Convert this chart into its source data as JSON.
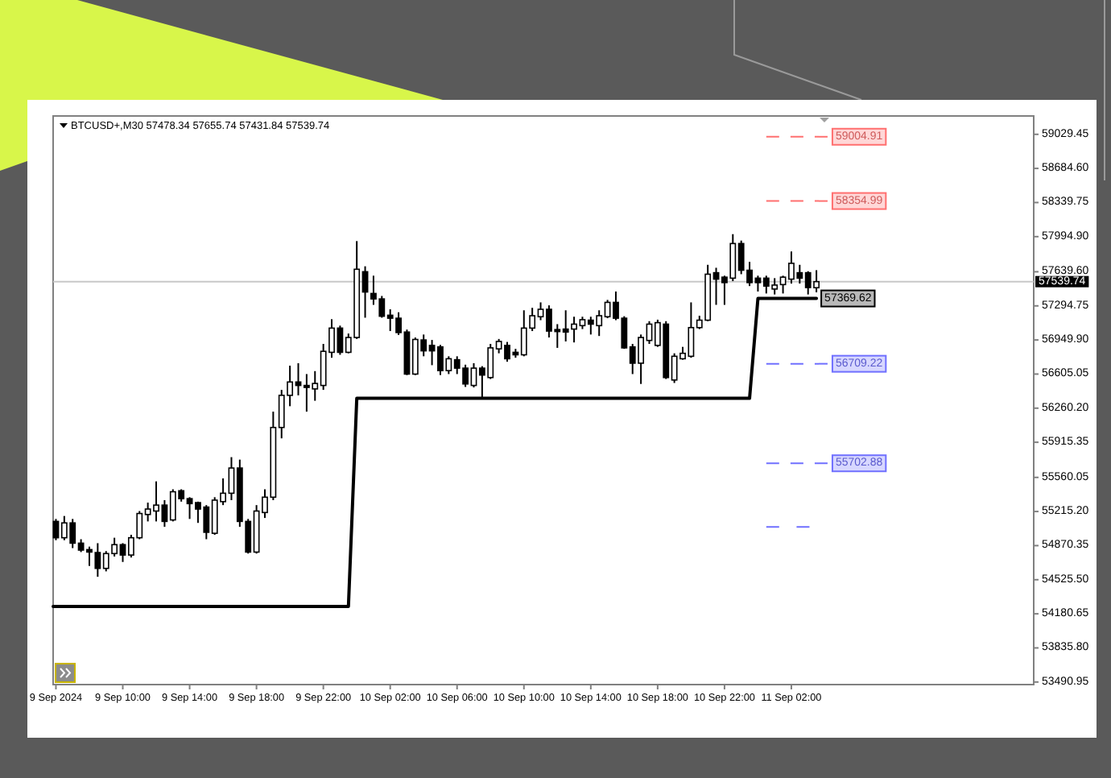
{
  "chart_data": {
    "type": "candlestick",
    "title": "BTCUSD+,M30 57478.34 57655.74 57431.84 57539.74",
    "color": "#000000",
    "x": [
      "2024-09-09T06:00",
      "2024-09-09T06:30",
      "2024-09-09T07:00",
      "2024-09-09T07:30",
      "2024-09-09T08:00",
      "2024-09-09T08:30",
      "2024-09-09T09:00",
      "2024-09-09T09:30",
      "2024-09-09T10:00",
      "2024-09-09T10:30",
      "2024-09-09T11:00",
      "2024-09-09T11:30",
      "2024-09-09T12:00",
      "2024-09-09T12:30",
      "2024-09-09T13:00",
      "2024-09-09T13:30",
      "2024-09-09T14:00",
      "2024-09-09T14:30",
      "2024-09-09T15:00",
      "2024-09-09T15:30",
      "2024-09-09T16:00",
      "2024-09-09T16:30",
      "2024-09-09T17:00",
      "2024-09-09T17:30",
      "2024-09-09T18:00",
      "2024-09-09T18:30",
      "2024-09-09T19:00",
      "2024-09-09T19:30",
      "2024-09-09T20:00",
      "2024-09-09T20:30",
      "2024-09-09T21:00",
      "2024-09-09T21:30",
      "2024-09-09T22:00",
      "2024-09-09T22:30",
      "2024-09-09T23:00",
      "2024-09-09T23:30",
      "2024-09-10T00:00",
      "2024-09-10T00:30",
      "2024-09-10T01:00",
      "2024-09-10T01:30",
      "2024-09-10T02:00",
      "2024-09-10T02:30",
      "2024-09-10T03:00",
      "2024-09-10T03:30",
      "2024-09-10T04:00",
      "2024-09-10T04:30",
      "2024-09-10T05:00",
      "2024-09-10T05:30",
      "2024-09-10T06:00",
      "2024-09-10T06:30",
      "2024-09-10T07:00",
      "2024-09-10T07:30",
      "2024-09-10T08:00",
      "2024-09-10T08:30",
      "2024-09-10T09:00",
      "2024-09-10T09:30",
      "2024-09-10T10:00",
      "2024-09-10T10:30",
      "2024-09-10T11:00",
      "2024-09-10T11:30",
      "2024-09-10T12:00",
      "2024-09-10T12:30",
      "2024-09-10T13:00",
      "2024-09-10T13:30",
      "2024-09-10T14:00",
      "2024-09-10T14:30",
      "2024-09-10T15:00",
      "2024-09-10T15:30",
      "2024-09-10T16:00",
      "2024-09-10T16:30",
      "2024-09-10T17:00",
      "2024-09-10T17:30",
      "2024-09-10T18:00",
      "2024-09-10T18:30",
      "2024-09-10T19:00",
      "2024-09-10T19:30",
      "2024-09-10T20:00",
      "2024-09-10T20:30",
      "2024-09-10T21:00",
      "2024-09-10T21:30",
      "2024-09-10T22:00",
      "2024-09-10T22:30",
      "2024-09-10T23:00",
      "2024-09-10T23:30",
      "2024-09-11T00:00",
      "2024-09-11T00:30",
      "2024-09-11T01:00",
      "2024-09-11T01:30",
      "2024-09-11T02:00",
      "2024-09-11T02:30",
      "2024-09-11T03:00",
      "2024-09-11T03:30"
    ],
    "ohlc": [
      [
        55115,
        55140,
        54925,
        54950
      ],
      [
        54950,
        55170,
        54925,
        55100
      ],
      [
        55100,
        55140,
        54845,
        54895
      ],
      [
        54895,
        54935,
        54805,
        54825
      ],
      [
        54830,
        54860,
        54665,
        54805
      ],
      [
        54800,
        54895,
        54555,
        54640
      ],
      [
        54640,
        54815,
        54610,
        54790
      ],
      [
        54790,
        54950,
        54760,
        54880
      ],
      [
        54880,
        54895,
        54705,
        54775
      ],
      [
        54775,
        54980,
        54750,
        54950
      ],
      [
        54950,
        55220,
        54935,
        55195
      ],
      [
        55185,
        55305,
        55115,
        55240
      ],
      [
        55220,
        55520,
        55115,
        55280
      ],
      [
        55280,
        55330,
        55060,
        55115
      ],
      [
        55130,
        55440,
        55115,
        55415
      ],
      [
        55425,
        55440,
        55315,
        55345
      ],
      [
        55345,
        55360,
        55140,
        55295
      ],
      [
        55305,
        55315,
        55100,
        55240
      ],
      [
        55260,
        55280,
        54935,
        55005
      ],
      [
        54995,
        55360,
        54980,
        55330
      ],
      [
        55315,
        55550,
        55280,
        55400
      ],
      [
        55400,
        55765,
        55330,
        55655
      ],
      [
        55655,
        55740,
        55060,
        55115
      ],
      [
        55115,
        55140,
        54790,
        54805
      ],
      [
        54805,
        55280,
        54790,
        55220
      ],
      [
        55205,
        55440,
        55150,
        55360
      ],
      [
        55360,
        56225,
        55330,
        56065
      ],
      [
        56065,
        56445,
        55955,
        56390
      ],
      [
        56390,
        56690,
        56280,
        56525
      ],
      [
        56525,
        56715,
        56390,
        56490
      ],
      [
        56490,
        56605,
        56225,
        56470
      ],
      [
        56455,
        56635,
        56335,
        56510
      ],
      [
        56490,
        56910,
        56445,
        56835
      ],
      [
        56825,
        57160,
        56770,
        57070
      ],
      [
        57070,
        57095,
        56800,
        56825
      ],
      [
        56825,
        57015,
        56815,
        56975
      ],
      [
        56975,
        57950,
        56960,
        57665
      ],
      [
        57640,
        57695,
        57175,
        57435
      ],
      [
        57420,
        57600,
        57305,
        57365
      ],
      [
        57365,
        57395,
        57175,
        57190
      ],
      [
        57200,
        57260,
        57040,
        57170
      ],
      [
        57170,
        57230,
        57000,
        57025
      ],
      [
        57030,
        57055,
        56595,
        56605
      ],
      [
        56605,
        56975,
        56595,
        56955
      ],
      [
        56950,
        57005,
        56785,
        56840
      ],
      [
        56895,
        56950,
        56695,
        56840
      ],
      [
        56880,
        56900,
        56595,
        56640
      ],
      [
        56640,
        56785,
        56605,
        56760
      ],
      [
        56750,
        56785,
        56605,
        56665
      ],
      [
        56665,
        56700,
        56475,
        56505
      ],
      [
        56490,
        56715,
        56470,
        56665
      ],
      [
        56665,
        56685,
        56355,
        56595
      ],
      [
        56570,
        56910,
        56555,
        56870
      ],
      [
        56860,
        56960,
        56815,
        56935
      ],
      [
        56895,
        56930,
        56730,
        56760
      ],
      [
        56825,
        56860,
        56770,
        56800
      ],
      [
        56800,
        57250,
        56785,
        57070
      ],
      [
        57070,
        57275,
        57040,
        57195
      ],
      [
        57185,
        57330,
        57150,
        57260
      ],
      [
        57260,
        57300,
        56975,
        57040
      ],
      [
        57055,
        57110,
        56870,
        57035
      ],
      [
        57060,
        57250,
        56935,
        57030
      ],
      [
        57060,
        57185,
        56925,
        57110
      ],
      [
        57095,
        57185,
        57060,
        57155
      ],
      [
        57150,
        57185,
        57005,
        57110
      ],
      [
        57095,
        57250,
        56990,
        57195
      ],
      [
        57185,
        57355,
        57170,
        57330
      ],
      [
        57330,
        57440,
        57150,
        57170
      ],
      [
        57170,
        57190,
        56860,
        56870
      ],
      [
        56880,
        56910,
        56605,
        56715
      ],
      [
        56715,
        57005,
        56505,
        56975
      ],
      [
        56945,
        57140,
        56910,
        57110
      ],
      [
        56895,
        57155,
        56880,
        57125
      ],
      [
        57110,
        57140,
        56555,
        56570
      ],
      [
        56545,
        56815,
        56515,
        56785
      ],
      [
        56760,
        56880,
        56750,
        56815
      ],
      [
        56785,
        57330,
        56770,
        57075
      ],
      [
        57075,
        57195,
        57060,
        57150
      ],
      [
        57150,
        57710,
        57140,
        57615
      ],
      [
        57630,
        57680,
        57305,
        57565
      ],
      [
        57585,
        57600,
        57305,
        57530
      ],
      [
        57575,
        58020,
        57545,
        57925
      ],
      [
        57925,
        57955,
        57615,
        57655
      ],
      [
        57655,
        57740,
        57495,
        57530
      ],
      [
        57575,
        57600,
        57440,
        57530
      ],
      [
        57575,
        57600,
        57420,
        57495
      ],
      [
        57465,
        57575,
        57410,
        57505
      ],
      [
        57510,
        57600,
        57420,
        57585
      ],
      [
        57565,
        57845,
        57520,
        57725
      ],
      [
        57630,
        57710,
        57520,
        57575
      ],
      [
        57630,
        57645,
        57410,
        57480
      ],
      [
        57478.34,
        57655.74,
        57431.84,
        57539.74
      ]
    ],
    "series": [
      {
        "type": "line",
        "color": "#000000",
        "x": [
          "2024-09-09T05:50",
          "2024-09-09T23:30",
          "2024-09-10T00:00",
          "2024-09-10T23:30",
          "2024-09-11T00:00",
          "2024-09-11T03:30"
        ],
        "values": [
          54255,
          54255,
          56360,
          56360,
          57369.62,
          57369.62
        ],
        "value_labels": [
          null,
          null,
          null,
          null,
          null,
          "57369.62"
        ]
      },
      {
        "type": "line",
        "color": "#ff7070",
        "line_style": "dashed",
        "x": [
          "2024-09-11T00:30",
          "2024-09-11T04:10"
        ],
        "values": [
          59004.91,
          59004.91
        ],
        "value_labels": [
          null,
          "59004.91"
        ]
      },
      {
        "type": "line",
        "color": "#ff7070",
        "line_style": "dashed",
        "x": [
          "2024-09-11T00:30",
          "2024-09-11T04:10"
        ],
        "values": [
          58354.99,
          58354.99
        ],
        "value_labels": [
          null,
          "58354.99"
        ]
      },
      {
        "type": "line",
        "color": "#7070ff",
        "line_style": "dashed",
        "x": [
          "2024-09-11T00:30",
          "2024-09-11T04:10"
        ],
        "values": [
          56709.22,
          56709.22
        ],
        "value_labels": [
          null,
          "56709.22"
        ]
      },
      {
        "type": "line",
        "color": "#7070ff",
        "line_style": "dashed",
        "x": [
          "2024-09-11T00:30",
          "2024-09-11T04:10"
        ],
        "values": [
          55702.88,
          55702.88
        ],
        "value_labels": [
          null,
          "55702.88"
        ]
      },
      {
        "type": "line",
        "color": "#7070ff",
        "line_style": "dashed",
        "x": [
          "2024-09-11T00:30",
          "2024-09-11T03:05"
        ],
        "values": [
          55060,
          55060
        ]
      }
    ],
    "ref_lines": [
      {
        "axis": "y",
        "value": 57539.74,
        "label": "57539.74",
        "color": "#c8c8c8"
      }
    ],
    "xlim": [
      "2024-09-09T05:50",
      "2024-09-11T16:30"
    ],
    "xticks": [
      {
        "value": "2024-09-09T06:00",
        "label": "9 Sep 2024"
      },
      {
        "value": "2024-09-09T10:00",
        "label": "9 Sep 10:00"
      },
      {
        "value": "2024-09-09T14:00",
        "label": "9 Sep 14:00"
      },
      {
        "value": "2024-09-09T18:00",
        "label": "9 Sep 18:00"
      },
      {
        "value": "2024-09-09T22:00",
        "label": "9 Sep 22:00"
      },
      {
        "value": "2024-09-10T02:00",
        "label": "10 Sep 02:00"
      },
      {
        "value": "2024-09-10T06:00",
        "label": "10 Sep 06:00"
      },
      {
        "value": "2024-09-10T10:00",
        "label": "10 Sep 10:00"
      },
      {
        "value": "2024-09-10T14:00",
        "label": "10 Sep 14:00"
      },
      {
        "value": "2024-09-10T18:00",
        "label": "10 Sep 18:00"
      },
      {
        "value": "2024-09-10T22:00",
        "label": "10 Sep 22:00"
      },
      {
        "value": "2024-09-11T02:00",
        "label": "11 Sep 02:00"
      }
    ],
    "ylim": [
      53465,
      59215
    ],
    "yticks": [
      59029.45,
      {
        "value": 58684.6,
        "label": "58684.60"
      },
      58339.75,
      {
        "value": 57994.9,
        "label": "57994.90"
      },
      {
        "value": 57639.6,
        "label": "57639.60"
      },
      57294.75,
      {
        "value": 56949.9,
        "label": "56949.90"
      },
      56605.05,
      {
        "value": 56260.2,
        "label": "56260.20"
      },
      55915.35,
      55560.05,
      {
        "value": 55215.2,
        "label": "55215.20"
      },
      54870.35,
      {
        "value": 54525.5,
        "label": "54525.50"
      },
      54180.65,
      {
        "value": 53835.8,
        "label": "53835.80"
      },
      53490.95
    ]
  }
}
